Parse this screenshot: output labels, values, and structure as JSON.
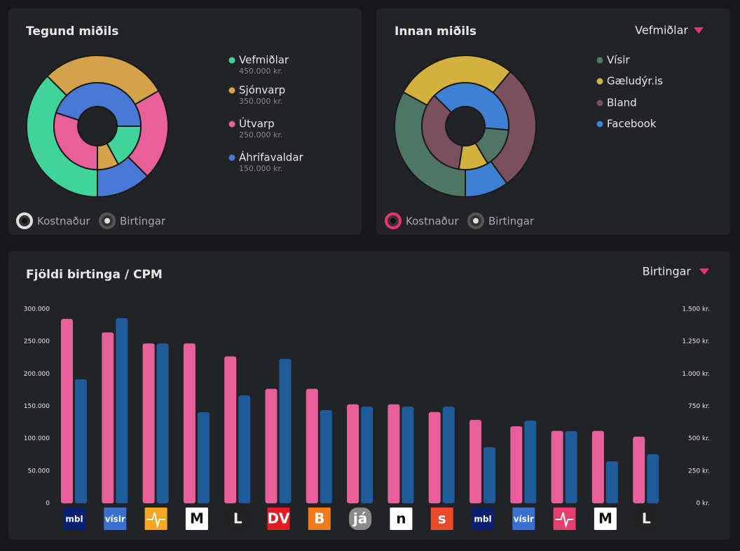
{
  "chart_data": [
    {
      "type": "donut",
      "title": "Tegund miðils",
      "categories": [
        "Vefmiðlar",
        "Sjónvarp",
        "Útvarp",
        "Áhrifavaldar"
      ],
      "colors": [
        "#3fd49a",
        "#d4a24a",
        "#e8609a",
        "#4a78d6"
      ],
      "series": [
        {
          "name": "Kostnaður",
          "values": [
            450000,
            350000,
            250000,
            150000
          ],
          "value_labels": [
            "450.000 kr.",
            "350.000 kr.",
            "250.000 kr.",
            "150.000 kr."
          ]
        },
        {
          "name": "Birtingar",
          "values": [
            17,
            8,
            30,
            45
          ]
        }
      ]
    },
    {
      "type": "donut",
      "title": "Innan miðils",
      "dropdown": "Vefmiðlar",
      "categories": [
        "Vísir",
        "Gæludýr.is",
        "Bland",
        "Facebook"
      ],
      "colors": [
        "#4f7565",
        "#d4b13e",
        "#7a4f5e",
        "#3f7fd4"
      ],
      "series": [
        {
          "name": "Kostnaður",
          "values": [
            33,
            28,
            29,
            10
          ]
        },
        {
          "name": "Birtingar",
          "values": [
            15,
            11,
            35,
            39
          ]
        }
      ]
    },
    {
      "type": "bar",
      "title": "Fjöldi birtinga / CPM",
      "dropdown": "Birtingar",
      "categories": [
        "mbl",
        "vísir",
        null,
        "M",
        "L",
        "DV",
        "B",
        "já",
        "n",
        "s",
        "mbl",
        "vísir",
        null,
        "M",
        "L"
      ],
      "series": [
        {
          "color": "#e8609a",
          "values": [
            285000,
            264000,
            247000,
            247000,
            227000,
            177000,
            177000,
            153000,
            153000,
            141000,
            129000,
            119000,
            112000,
            112000,
            103000
          ]
        },
        {
          "color": "#1f5a9a",
          "axis": "y2",
          "values": [
            958,
            1430,
            1235,
            704,
            834,
            1116,
            720,
            747,
            747,
            747,
            433,
            639,
            558,
            325,
            379
          ]
        }
      ],
      "ylim": [
        0,
        300000
      ],
      "yticks": [
        0,
        {
          "value": 50000,
          "label": "50.000"
        },
        {
          "value": 100000,
          "label": "100.000"
        },
        {
          "value": 150000,
          "label": "150.000"
        },
        {
          "value": 200000,
          "label": "200.000"
        },
        {
          "value": 250000,
          "label": "250.000"
        },
        {
          "value": 300000,
          "label": "300.000"
        }
      ],
      "y2lim": [
        0,
        1500
      ],
      "y2ticks": [
        {
          "value": 0,
          "label": "0 kr."
        },
        {
          "value": 250,
          "label": "250 kr."
        },
        {
          "value": 500,
          "label": "500 kr."
        },
        {
          "value": 750,
          "label": "750 kr."
        },
        {
          "value": 1000,
          "label": "1.000 kr."
        },
        {
          "value": 1250,
          "label": "1.250 kr."
        },
        {
          "value": 1500,
          "label": "1.500 kr."
        }
      ]
    }
  ]
}
